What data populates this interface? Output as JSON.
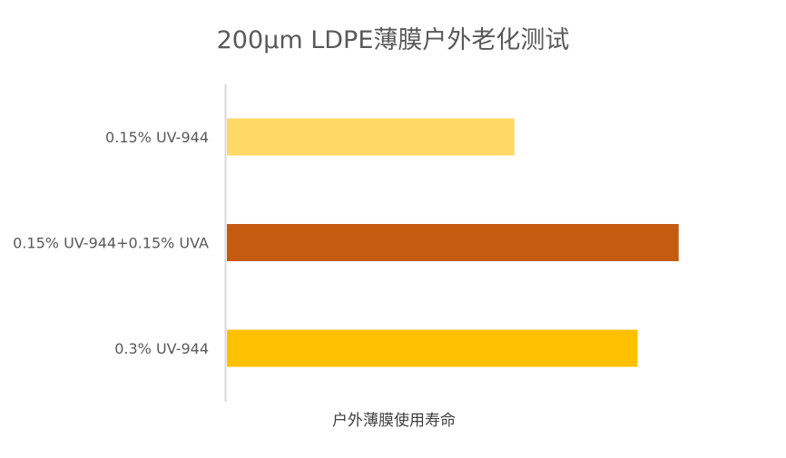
{
  "chart_data": {
    "type": "bar",
    "orientation": "horizontal",
    "title": "200μm LDPE薄膜户外老化测试",
    "xlabel": "户外薄膜使用寿命",
    "ylabel": "",
    "categories": [
      "0.15% UV-944",
      "0.15% UV-944+0.15% UVA",
      "0.3% UV-944"
    ],
    "values": [
      7,
      11,
      10
    ],
    "colors": [
      "#FFD966",
      "#C55A11",
      "#FFC000"
    ],
    "xlim": [
      0,
      12
    ],
    "grid": false,
    "legend": "none"
  }
}
